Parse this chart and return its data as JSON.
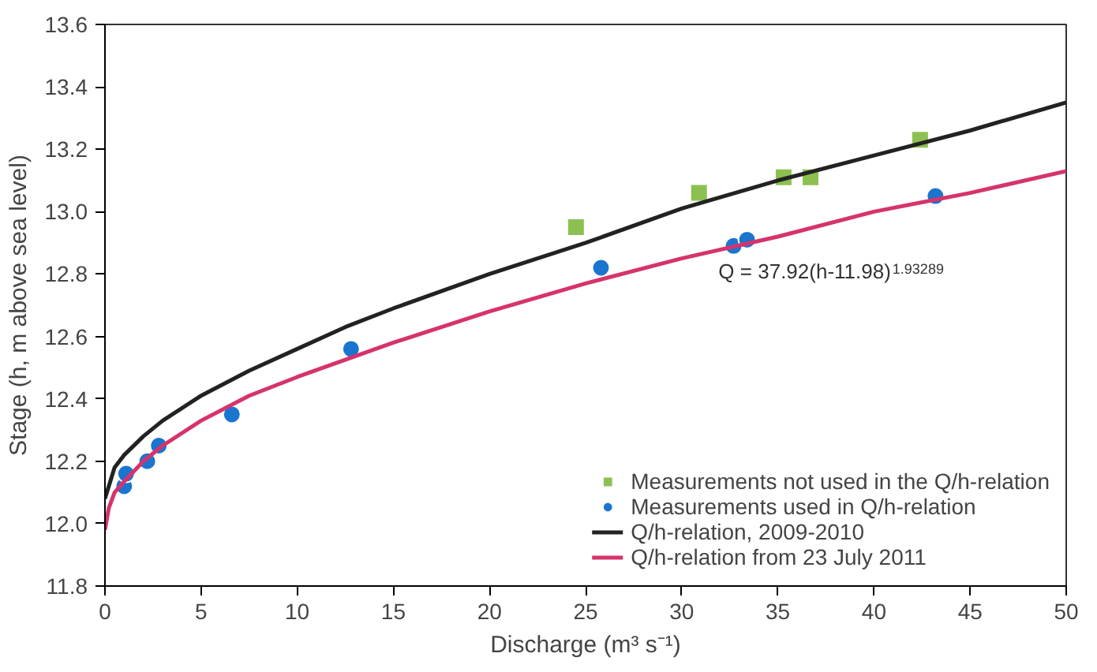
{
  "chart_data": {
    "type": "scatter",
    "xlabel": "Discharge (m³ s⁻¹)",
    "ylabel": "Stage (h, m above sea level)",
    "xlim": [
      0,
      50
    ],
    "ylim": [
      11.8,
      13.6
    ],
    "xticks": [
      0,
      5,
      10,
      15,
      20,
      25,
      30,
      35,
      40,
      45,
      50
    ],
    "yticks": [
      11.8,
      {
        "value": 12,
        "label": "12.0"
      },
      12.2,
      12.4,
      12.6,
      12.8,
      {
        "value": 13,
        "label": "13.0"
      },
      13.2,
      13.4,
      13.6
    ],
    "grid": false,
    "legend": "bottom right",
    "annotations": [
      "Q = 37.92(h-11.98)$^{1.93289}$"
    ],
    "series": [
      {
        "name": "Measurements not used in the Q/h-relation",
        "marker": "square",
        "color": "#8cc152",
        "x": [
          24.5,
          30.9,
          35.3,
          36.7,
          42.4
        ],
        "values": [
          12.95,
          13.06,
          13.11,
          13.11,
          13.23
        ]
      },
      {
        "name": "Measurements used in Q/h-relation",
        "marker": "circle",
        "color": "#1a75cf",
        "x": [
          1.0,
          1.1,
          2.2,
          2.8,
          6.6,
          12.8,
          25.8,
          32.7,
          33.4,
          43.2
        ],
        "values": [
          12.12,
          12.16,
          12.2,
          12.25,
          12.35,
          12.56,
          12.82,
          12.89,
          12.91,
          13.05
        ]
      },
      {
        "name": "Q/h-relation, 2009-2010",
        "type": "line",
        "color": "#222222",
        "x": [
          0,
          0.5,
          1,
          2,
          3,
          5,
          7.5,
          10,
          12.5,
          15,
          20,
          25,
          30,
          35,
          40,
          45,
          50
        ],
        "values": [
          12.08,
          12.18,
          12.22,
          12.28,
          12.33,
          12.41,
          12.49,
          12.56,
          12.63,
          12.69,
          12.8,
          12.9,
          13.01,
          13.1,
          13.18,
          13.26,
          13.35
        ]
      },
      {
        "name": "Q/h-relation from 23 July 2011",
        "type": "line",
        "color": "#d6336c",
        "x": [
          0,
          0.2,
          0.5,
          1,
          2,
          3,
          5,
          7.5,
          10,
          15,
          20,
          25,
          30,
          35,
          40,
          45,
          50
        ],
        "values": [
          11.98,
          12.05,
          12.1,
          12.135,
          12.2,
          12.25,
          12.33,
          12.41,
          12.47,
          12.58,
          12.68,
          12.77,
          12.85,
          12.92,
          13.0,
          13.06,
          13.13
        ]
      }
    ]
  }
}
